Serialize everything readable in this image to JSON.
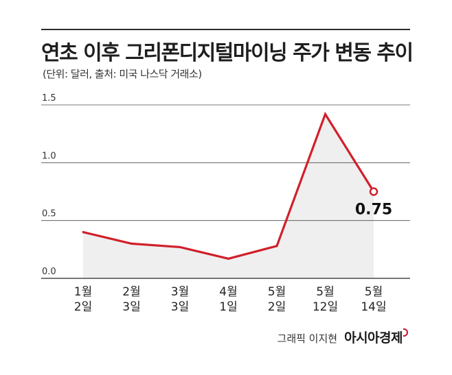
{
  "header": {
    "title": "연초 이후 그리폰디지털마이닝 주가 변동 추이",
    "subtitle": "(단위: 달러, 출처: 미국 나스닥 거래소)"
  },
  "footer": {
    "credit": "그래픽 이지현",
    "brand": "아시아경제"
  },
  "colors": {
    "line": "#d11f2a",
    "area": "#efefef",
    "grid": "#4a4a4a"
  },
  "chart_data": {
    "type": "area",
    "categories": [
      [
        "1월",
        "2일"
      ],
      [
        "2월",
        "3일"
      ],
      [
        "3월",
        "3일"
      ],
      [
        "4월",
        "1일"
      ],
      [
        "5월",
        "2일"
      ],
      [
        "5월",
        "12일"
      ],
      [
        "5월",
        "14일"
      ]
    ],
    "values": [
      0.4,
      0.3,
      0.27,
      0.17,
      0.28,
      1.42,
      0.75
    ],
    "ylim": [
      0,
      1.5
    ],
    "yticks": [
      "0.0",
      "0.5",
      "1.0",
      "1.5"
    ],
    "ytick_values": [
      0,
      0.5,
      1.0,
      1.5
    ],
    "annotation": {
      "index": 6,
      "text": "0.75"
    },
    "grid": true,
    "xlabel": "",
    "ylabel": ""
  }
}
